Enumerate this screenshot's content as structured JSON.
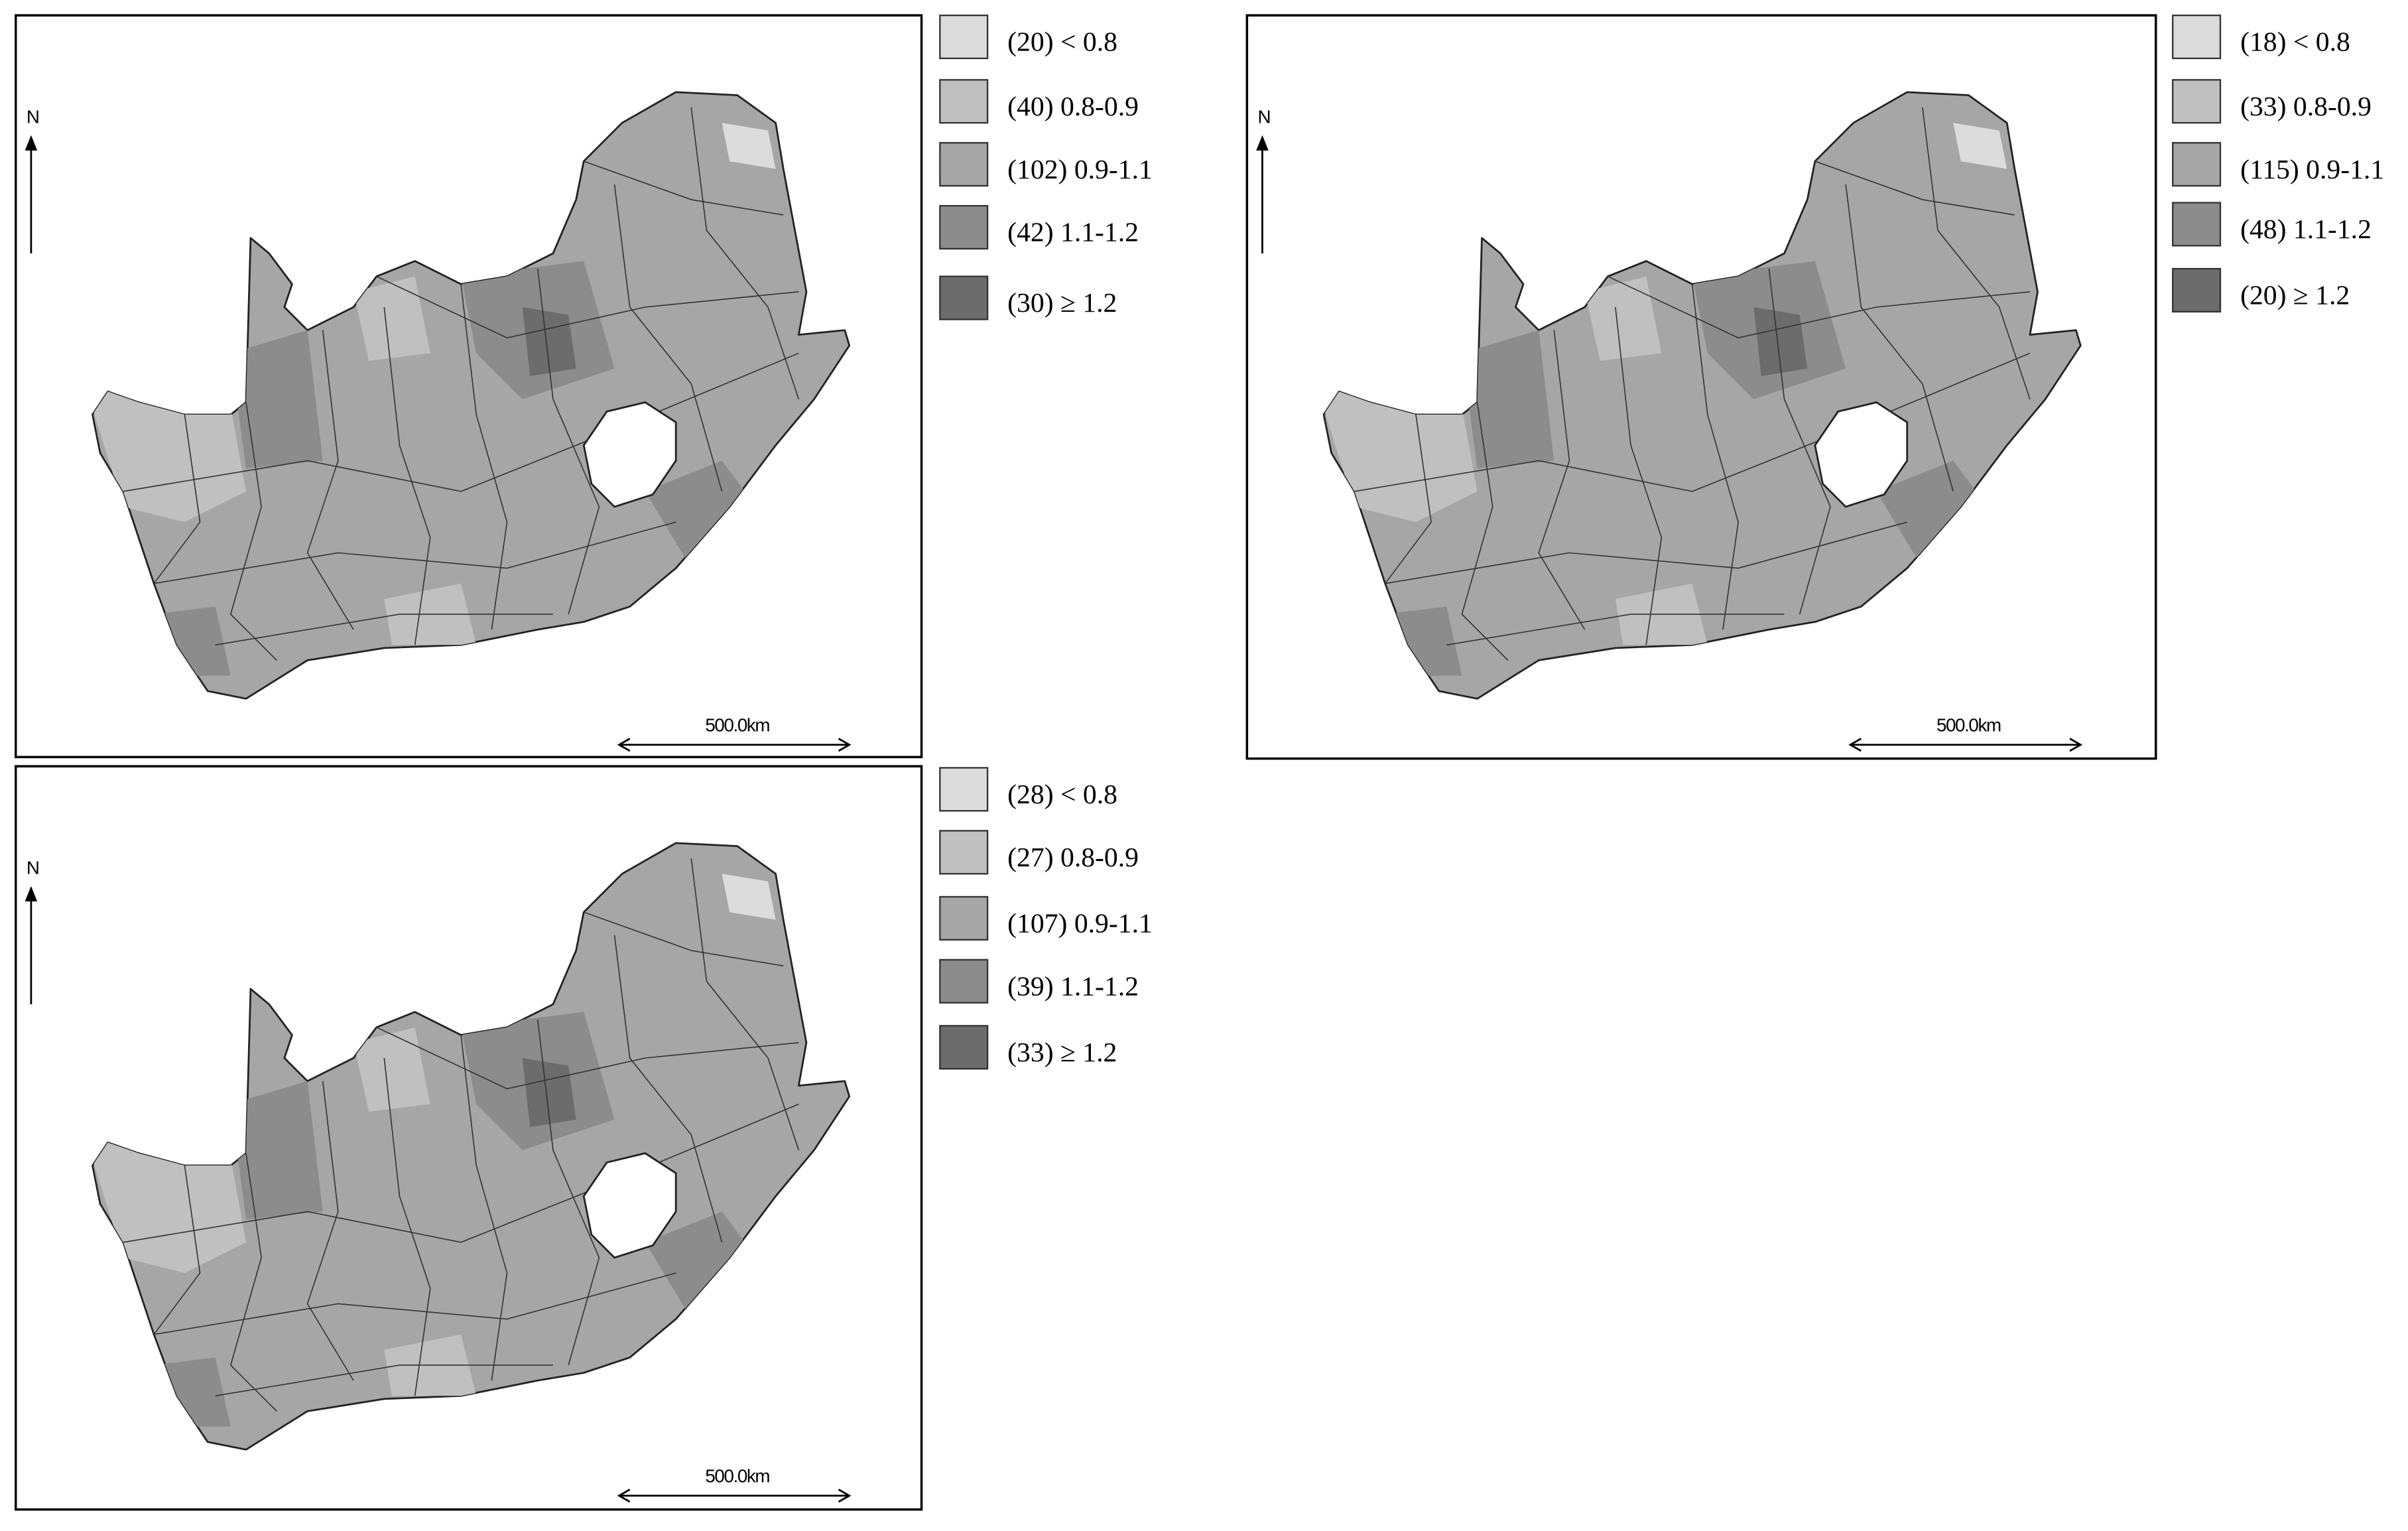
{
  "maps": [
    {
      "north": "N",
      "scale": "500.0km",
      "legend": [
        "(20) < 0.8",
        "(40) 0.8-0.9",
        "(102) 0.9-1.1",
        "(42) 1.1-1.2",
        "(30) ≥ 1.2"
      ]
    },
    {
      "north": "N",
      "scale": "500.0km",
      "legend": [
        "(18) < 0.8",
        "(33) 0.8-0.9",
        "(115) 0.9-1.1",
        "(48) 1.1-1.2",
        "(20) ≥ 1.2"
      ]
    },
    {
      "north": "N",
      "scale": "500.0km",
      "legend": [
        "(28) < 0.8",
        "(27) 0.8-0.9",
        "(107) 0.9-1.1",
        "(39) 1.1-1.2",
        "(33) ≥ 1.2"
      ]
    }
  ]
}
